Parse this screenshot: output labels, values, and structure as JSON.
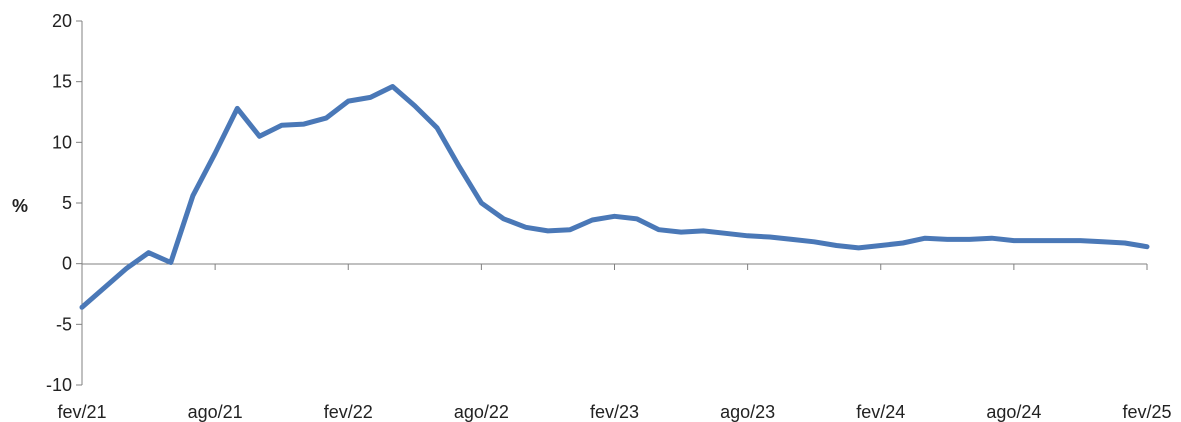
{
  "chart_data": {
    "type": "line",
    "title": "",
    "xlabel": "",
    "ylabel": "%",
    "ylim": [
      -10,
      20
    ],
    "yticks": [
      -10,
      -5,
      0,
      5,
      10,
      15,
      20
    ],
    "grid": false,
    "legend": "none",
    "x_tick_labels": [
      "fev/21",
      "ago/21",
      "fev/22",
      "ago/22",
      "fev/23",
      "ago/23",
      "fev/24",
      "ago/24",
      "fev/25"
    ],
    "x": [
      "fev/21",
      "mar/21",
      "abr/21",
      "mai/21",
      "jun/21",
      "jul/21",
      "ago/21",
      "set/21",
      "out/21",
      "nov/21",
      "dez/21",
      "jan/22",
      "fev/22",
      "mar/22",
      "abr/22",
      "mai/22",
      "jun/22",
      "jul/22",
      "ago/22",
      "set/22",
      "out/22",
      "nov/22",
      "dez/22",
      "jan/23",
      "fev/23",
      "mar/23",
      "abr/23",
      "mai/23",
      "jun/23",
      "jul/23",
      "ago/23",
      "set/23",
      "out/23",
      "nov/23",
      "dez/23",
      "jan/24",
      "fev/24",
      "mar/24",
      "abr/24",
      "mai/24",
      "jun/24",
      "jul/24",
      "ago/24",
      "set/24",
      "out/24",
      "nov/24",
      "dez/24",
      "jan/25",
      "fev/25"
    ],
    "series": [
      {
        "values": [
          -3.6,
          -2.0,
          -0.4,
          0.9,
          0.1,
          5.6,
          9.1,
          12.8,
          10.5,
          11.4,
          11.5,
          12.0,
          13.4,
          13.7,
          14.6,
          13.0,
          11.2,
          8.0,
          5.0,
          3.7,
          3.0,
          2.7,
          2.8,
          3.6,
          3.9,
          3.7,
          2.8,
          2.6,
          2.7,
          2.5,
          2.3,
          2.2,
          2.0,
          1.8,
          1.5,
          1.3,
          1.5,
          1.7,
          2.1,
          2.0,
          2.0,
          2.1,
          1.9,
          1.9,
          1.9,
          1.9,
          1.8,
          1.7,
          1.4
        ]
      }
    ],
    "colors": {
      "line": "#4a78b7",
      "axis": "#808080",
      "text": "#222222"
    }
  }
}
